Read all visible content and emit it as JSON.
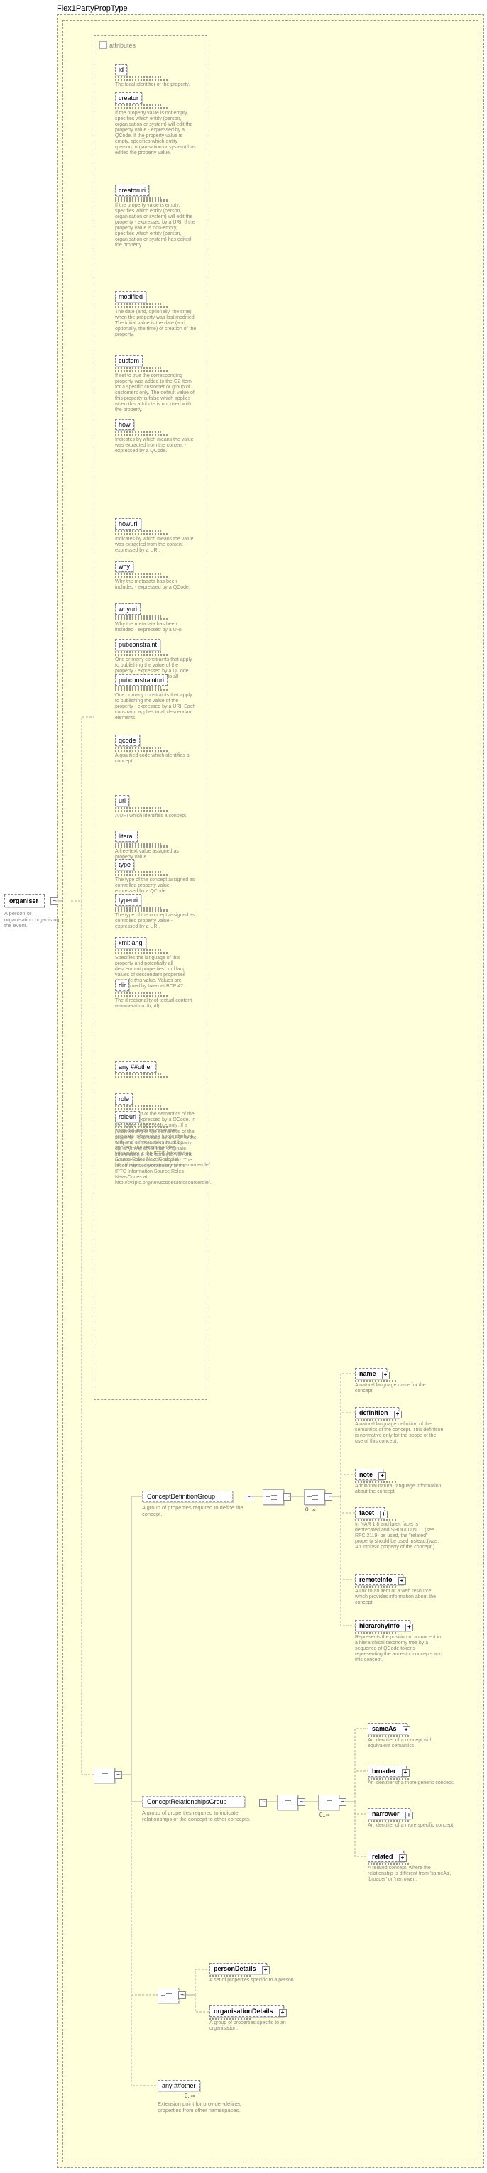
{
  "typeLabel": "Flex1PartyPropType",
  "root": {
    "name": "organiser",
    "desc": "A person or organisation organising the event."
  },
  "attributesLabel": "attributes",
  "attributes": [
    {
      "name": "id",
      "desc": "The local identifier of the property."
    },
    {
      "name": "creator",
      "desc": "If the property value is not empty, specifies which entity (person, organisation or system) will edit the property value - expressed by a QCode. If the property value is empty, specifies which entity (person, organisation or system) has edited the property value."
    },
    {
      "name": "creatoruri",
      "desc": "If the property value is empty, specifies which entity (person, organisation or system) will edit the property - expressed by a URI. If the property value is non-empty, specifies which entity (person, organisation or system) has edited the property."
    },
    {
      "name": "modified",
      "desc": "The date (and, optionally, the time) when the property was last modified. The initial value is the date (and, optionally, the time) of creation of the property."
    },
    {
      "name": "custom",
      "desc": "If set to true the corresponding property was added to the G2 Item for a specific customer or group of customers only. The default value of this property is false which applies when this attribute is not used with the property."
    },
    {
      "name": "how",
      "desc": "Indicates by which means the value was extracted from the content - expressed by a QCode."
    },
    {
      "name": "howuri",
      "desc": "Indicates by which means the value was extracted from the content - expressed by a URI."
    },
    {
      "name": "why",
      "desc": "Why the metadata has been included - expressed by a QCode."
    },
    {
      "name": "whyuri",
      "desc": "Why the metadata has been included - expressed by a URI."
    },
    {
      "name": "pubconstraint",
      "desc": "One or many constraints that apply to publishing the value of the property - expressed by a QCode. Each constraint applies to all descendant elements."
    },
    {
      "name": "pubconstrainturi",
      "desc": "One or many constraints that apply to publishing the value of the property - expressed by a URI. Each constraint applies to all descendant elements."
    },
    {
      "name": "qcode",
      "desc": "A qualified code which identifies a concept."
    },
    {
      "name": "uri",
      "desc": "A URI which identifies a concept."
    },
    {
      "name": "literal",
      "desc": "A free-text value assigned as property value."
    },
    {
      "name": "type",
      "desc": "The type of the concept assigned as controlled property value - expressed by a QCode."
    },
    {
      "name": "typeuri",
      "desc": "The type of the concept assigned as controlled property value - expressed by a URI."
    },
    {
      "name": "xml:lang",
      "desc": "Specifies the language of this property and potentially all descendant properties. xml:lang values of descendant properties override this value. Values are determined by Internet BCP 47."
    },
    {
      "name": "dir",
      "desc": "The directionality of textual content (enumeration: ltr, rtl)."
    },
    {
      "name": "any ##other",
      "desc": ""
    },
    {
      "name": "role",
      "desc": "A refinement of the semantics of the property - expressed by a QCode. In the scope of infoSource only: If a party did anything other than originate information a role attribute with one or more roles must be applied. The recommended vocabulary is the IPTC Information Source Roles NewsCodes at http://cv.iptc.org/newscodes/infosourcerole/."
    },
    {
      "name": "roleuri",
      "desc": "A refinement of the semantics of the property - expressed by a URI. In the scope of infoSource only: If a party did anything other than originate information a role attribute with one or more roles must be applied. The recommended vocabulary is the IPTC Information Source Roles NewsCodes at http://cv.iptc.org/newscodes/infosourcerole/."
    }
  ],
  "groups": {
    "def": {
      "name": "ConceptDefinitionGroup",
      "desc": "A group of properties required to define the concept."
    },
    "rel": {
      "name": "ConceptRelationshipsGroup",
      "desc": "A group of properties required to indicate relationships of the concept to other concepts."
    }
  },
  "defLeaves": [
    {
      "name": "name",
      "desc": "A natural language name for the concept."
    },
    {
      "name": "definition",
      "desc": "A natural language definition of the semantics of the concept. This definition is normative only for the scope of the use of this concept."
    },
    {
      "name": "note",
      "desc": "Additional natural language information about the concept."
    },
    {
      "name": "facet",
      "desc": "In NAR 1.8 and later, facet is deprecated and SHOULD NOT (see RFC 2119) be used, the \"related\" property should be used instead.(was: An intrinsic property of the concept.)"
    },
    {
      "name": "remoteInfo",
      "desc": "A link to an item or a web resource which provides information about the concept."
    },
    {
      "name": "hierarchyInfo",
      "desc": "Represents the position of a concept in a hierarchical taxonomy tree by a sequence of QCode tokens representing the ancestor concepts and this concept."
    }
  ],
  "relLeaves": [
    {
      "name": "sameAs",
      "desc": "An identifier of a concept with equivalent semantics."
    },
    {
      "name": "broader",
      "desc": "An identifier of a more generic concept."
    },
    {
      "name": "narrower",
      "desc": "An identifier of a more specific concept."
    },
    {
      "name": "related",
      "desc": "A related concept, where the relationship is different from 'sameAs', 'broader' or 'narrower'."
    }
  ],
  "details": {
    "person": {
      "name": "personDetails",
      "desc": "A set of properties specific to a person."
    },
    "org": {
      "name": "organisationDetails",
      "desc": "A group of properties specific to an organisation."
    }
  },
  "anyOther": {
    "name": "any ##other",
    "desc": "Extension point for provider-defined properties from other namespaces."
  },
  "occ0inf": "0..∞",
  "layout": {
    "attrTops": [
      90,
      130,
      260,
      410,
      500,
      590,
      730,
      790,
      850,
      900,
      950,
      1035,
      1120,
      1170,
      1210,
      1260,
      1320,
      1380,
      1495,
      1540,
      1565,
      1760
    ]
  }
}
